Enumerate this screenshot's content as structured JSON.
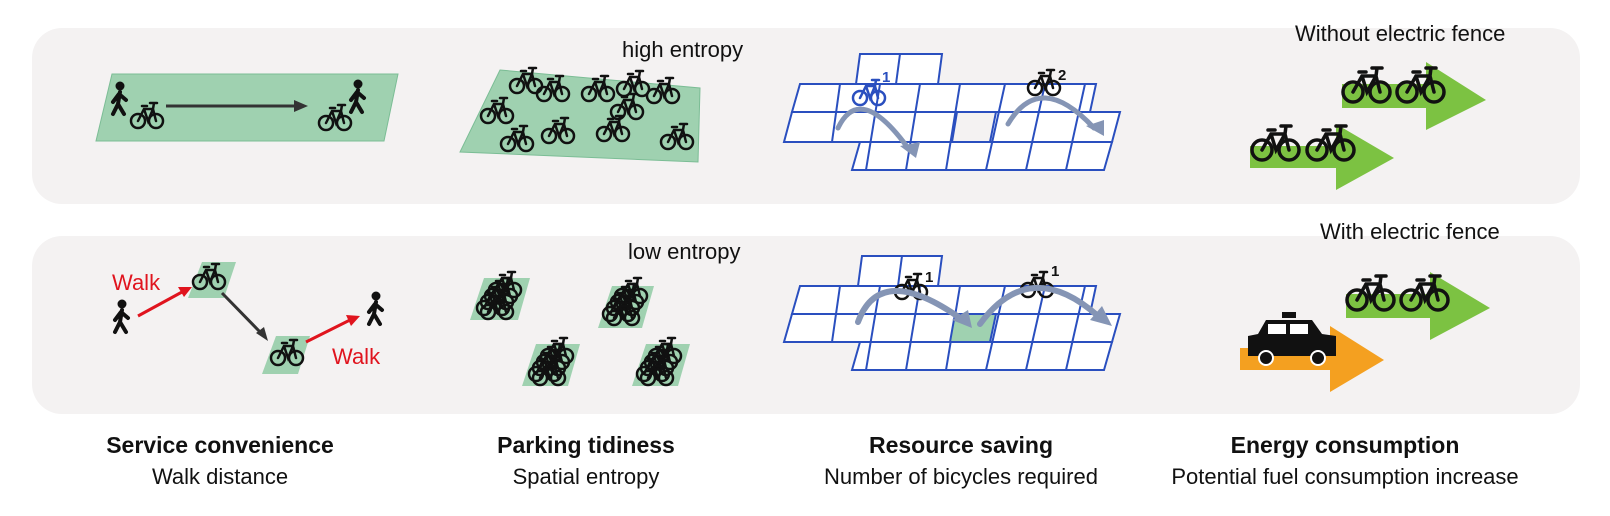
{
  "rows": {
    "top": {
      "entropy_label": "high entropy",
      "fence_label": "Without electric fence",
      "grid_markers": [
        "1",
        "2"
      ]
    },
    "bottom": {
      "entropy_label": "low entropy",
      "fence_label": "With electric fence",
      "grid_markers": [
        "1",
        "1"
      ],
      "walk_labels": [
        "Walk",
        "Walk"
      ]
    }
  },
  "columns": [
    {
      "title": "Service convenience",
      "subtitle": "Walk distance"
    },
    {
      "title": "Parking tidiness",
      "subtitle": "Spatial entropy"
    },
    {
      "title": "Resource saving",
      "subtitle": "Number of bicycles required"
    },
    {
      "title": "Energy consumption",
      "subtitle": "Potential fuel consumption increase"
    }
  ],
  "colors": {
    "panel": "#f4f2f2",
    "parking_area": "#9fd1b0",
    "grid_line": "#2a4fbf",
    "flow_arrow": "#8595b5",
    "walk": "#e0141e",
    "bike_arrow": "#7cc242",
    "car_arrow": "#f4a020"
  },
  "icons": [
    "bicycle-icon",
    "pedestrian-icon",
    "taxi-icon",
    "arrow-icon"
  ]
}
